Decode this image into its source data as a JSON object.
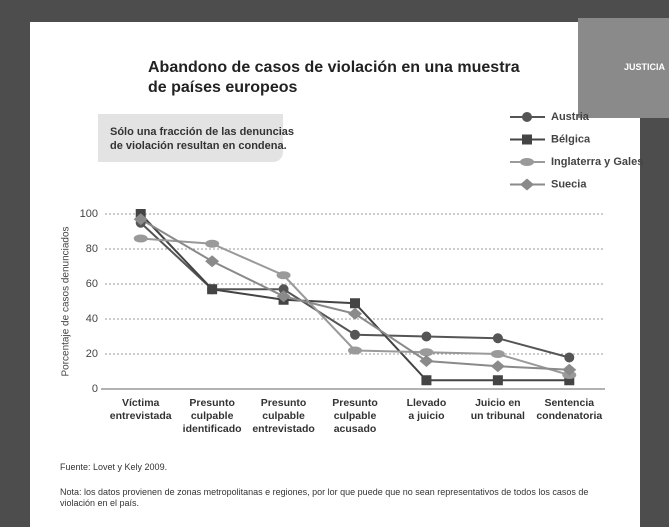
{
  "badge": "JUSTICIA",
  "chart_data": {
    "type": "line",
    "title": "Abandono de casos de violación en una muestra\nde países europeos",
    "annotation": "Sólo una fracción de las denuncias\nde violación resultan en condena.",
    "y_label": "Porcentaje de casos denunciados",
    "source": "Fuente: Lovet y Kely 2009.",
    "note": "Nota: los datos provienen de zonas metropolitanas e regiones, por lor que puede que no sean representativos de todos los casos de violación en el país.",
    "categories": [
      "Víctima\nentrevistada",
      "Presunto\nculpable\nidentificado",
      "Presunto\nculpable\nentrevistado",
      "Presunto\nculpable\nacusado",
      "Llevado\na juicio",
      "Juicio en\nun tribunal",
      "Sentencia\ncondenatoria"
    ],
    "series": [
      {
        "name": "Austria",
        "color": "#555555",
        "marker": "circle",
        "values": [
          95,
          57,
          57,
          31,
          30,
          29,
          18
        ]
      },
      {
        "name": "Bélgica",
        "color": "#444444",
        "marker": "square",
        "values": [
          100,
          57,
          51,
          49,
          5,
          5,
          5
        ]
      },
      {
        "name": "Inglaterra y Gales",
        "color": "#9a9a9a",
        "marker": "ellipse",
        "values": [
          86,
          83,
          65,
          22,
          21,
          20,
          8
        ]
      },
      {
        "name": "Suecia",
        "color": "#8a8a8a",
        "marker": "diamond",
        "values": [
          97,
          73,
          53,
          43,
          16,
          13,
          11
        ]
      }
    ],
    "ylim": [
      0,
      100
    ],
    "yticks": [
      0,
      20,
      40,
      60,
      80,
      100
    ],
    "grid": true
  }
}
